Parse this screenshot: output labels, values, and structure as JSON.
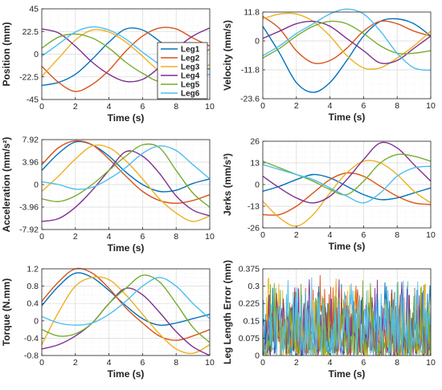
{
  "series_colors": [
    "#0072BD",
    "#D95319",
    "#EDB120",
    "#7E2F8E",
    "#77AC30",
    "#4DBEEE"
  ],
  "chart_data": [
    {
      "type": "line",
      "xlabel": "Time (s)",
      "ylabel": "Position (mm)",
      "xlim": [
        0,
        10
      ],
      "ylim": [
        -45,
        45
      ],
      "xticks": [
        "0",
        "2",
        "4",
        "6",
        "8",
        "10"
      ],
      "yticks": [
        "-45",
        "-22.5",
        "0",
        "22.5",
        "45"
      ],
      "grid": true,
      "legend": {
        "placement": "inside-right",
        "entries": [
          "Leg1",
          "Leg2",
          "Leg3",
          "Leg4",
          "Leg5",
          "Leg6"
        ]
      },
      "series": [
        {
          "name": "Leg1",
          "x": [
            0,
            1,
            2,
            3,
            4,
            5,
            6,
            7,
            8,
            9,
            10
          ],
          "values": [
            -31,
            -28,
            -20,
            -5,
            12,
            25,
            24,
            13,
            0,
            -10,
            -15
          ]
        },
        {
          "name": "Leg2",
          "x": [
            0,
            1,
            2,
            3,
            4,
            5,
            6,
            7,
            8,
            9,
            10
          ],
          "values": [
            -12,
            -28,
            -37,
            -30,
            -16,
            3,
            18,
            26,
            25,
            16,
            8
          ]
        },
        {
          "name": "Leg3",
          "x": [
            0,
            1,
            2,
            3,
            4,
            5,
            6,
            7,
            8,
            9,
            10
          ],
          "values": [
            -22,
            -4,
            14,
            24,
            22,
            12,
            -2,
            -17,
            -26,
            -22,
            -10
          ]
        },
        {
          "name": "Leg4",
          "x": [
            0,
            1,
            2,
            3,
            4,
            5,
            6,
            7,
            8,
            9,
            10
          ],
          "values": [
            25,
            21,
            8,
            -8,
            -20,
            -27,
            -25,
            -13,
            5,
            18,
            26
          ]
        },
        {
          "name": "Leg5",
          "x": [
            0,
            1,
            2,
            3,
            4,
            5,
            6,
            7,
            8,
            9,
            10
          ],
          "values": [
            6,
            17,
            20,
            16,
            6,
            -8,
            -19,
            -27,
            -23,
            -8,
            5
          ]
        },
        {
          "name": "Leg6",
          "x": [
            0,
            1,
            2,
            3,
            4,
            5,
            6,
            7,
            8,
            9,
            10
          ],
          "values": [
            -2,
            10,
            22,
            27,
            24,
            15,
            2,
            -10,
            -19,
            -22,
            -20
          ]
        }
      ]
    },
    {
      "type": "line",
      "xlabel": "Time (s)",
      "ylabel": "Velocity (mm/s)",
      "xlim": [
        0,
        10
      ],
      "ylim": [
        -23.6,
        11.8
      ],
      "xticks": [
        "0",
        "2",
        "4",
        "6",
        "8",
        "10"
      ],
      "yticks": [
        "-23.6",
        "-11.8",
        "0",
        "11.8"
      ],
      "grid": true,
      "series": [
        {
          "name": "Leg1",
          "x": [
            0,
            1,
            2,
            3,
            4,
            5,
            6,
            7,
            8,
            9,
            10
          ],
          "values": [
            6,
            -5,
            -17,
            -21,
            -17,
            -8,
            2,
            8,
            9,
            7,
            2
          ]
        },
        {
          "name": "Leg2",
          "x": [
            0,
            1,
            2,
            3,
            4,
            5,
            6,
            7,
            8,
            9,
            10
          ],
          "values": [
            10,
            5,
            -4,
            -9,
            -8,
            -3,
            4,
            8,
            7,
            4,
            2
          ]
        },
        {
          "name": "Leg3",
          "x": [
            0,
            1,
            2,
            3,
            4,
            5,
            6,
            7,
            8,
            9,
            10
          ],
          "values": [
            9,
            11,
            11,
            8,
            2,
            -6,
            -11,
            -11,
            -7,
            -2,
            4
          ]
        },
        {
          "name": "Leg4",
          "x": [
            0,
            1,
            2,
            3,
            4,
            5,
            6,
            7,
            8,
            9,
            10
          ],
          "values": [
            1,
            4,
            7,
            8,
            6,
            1,
            -4,
            -9,
            -8,
            -3,
            2
          ]
        },
        {
          "name": "Leg5",
          "x": [
            0,
            1,
            2,
            3,
            4,
            5,
            6,
            7,
            8,
            9,
            10
          ],
          "values": [
            -7,
            -3,
            2,
            6,
            8,
            7,
            3,
            -2,
            -5,
            -5,
            -4
          ]
        },
        {
          "name": "Leg6",
          "x": [
            0,
            1,
            2,
            3,
            4,
            5,
            6,
            7,
            8,
            9,
            10
          ],
          "values": [
            -6,
            -2,
            3,
            7,
            11,
            13,
            11,
            4,
            -5,
            -11,
            -12
          ]
        }
      ]
    },
    {
      "type": "line",
      "xlabel": "Time (s)",
      "ylabel": "Acceleration (mm/s²)",
      "xlim": [
        0,
        10
      ],
      "ylim": [
        -7.92,
        7.92
      ],
      "xticks": [
        "0",
        "2",
        "4",
        "6",
        "8",
        "10"
      ],
      "yticks": [
        "-7.92",
        "-3.96",
        "0",
        "3.96",
        "7.92"
      ],
      "grid": true,
      "series": [
        {
          "name": "Leg1",
          "x": [
            0,
            1,
            2,
            3,
            4,
            5,
            6,
            7,
            8,
            9,
            10
          ],
          "values": [
            2.5,
            5.5,
            7.5,
            7,
            5,
            2.2,
            0,
            -1.2,
            -1,
            0.2,
            1
          ]
        },
        {
          "name": "Leg2",
          "x": [
            0,
            1,
            2,
            3,
            4,
            5,
            6,
            7,
            8,
            9,
            10
          ],
          "values": [
            3.5,
            6.5,
            7.7,
            7,
            4.5,
            1.5,
            -1.2,
            -2.8,
            -3.3,
            -2.8,
            -1.8
          ]
        },
        {
          "name": "Leg3",
          "x": [
            0,
            1,
            2,
            3,
            4,
            5,
            6,
            7,
            8,
            9,
            10
          ],
          "values": [
            -1.2,
            1.5,
            4.5,
            6.8,
            6.5,
            4.2,
            1,
            -2.5,
            -5,
            -6.5,
            -5.5
          ]
        },
        {
          "name": "Leg4",
          "x": [
            0,
            1,
            2,
            3,
            4,
            5,
            6,
            7,
            8,
            9,
            10
          ],
          "values": [
            -6.5,
            -6,
            -4,
            -1,
            2.5,
            5.8,
            5,
            2,
            -2,
            -4.5,
            -5.5
          ]
        },
        {
          "name": "Leg5",
          "x": [
            0,
            1,
            2,
            3,
            4,
            5,
            6,
            7,
            8,
            9,
            10
          ],
          "values": [
            -2.5,
            -3,
            -2,
            0,
            2.5,
            5,
            7,
            6.5,
            2.5,
            -1.5,
            -4
          ]
        },
        {
          "name": "Leg6",
          "x": [
            0,
            1,
            2,
            3,
            4,
            5,
            6,
            7,
            8,
            9,
            10
          ],
          "values": [
            0.5,
            0,
            -0.8,
            -0.5,
            1,
            3,
            5.5,
            6.8,
            6,
            3.5,
            1
          ]
        }
      ]
    },
    {
      "type": "line",
      "xlabel": "Time (s)",
      "ylabel": "Jerks (mm/s³)",
      "xlim": [
        0,
        10
      ],
      "ylim": [
        -26,
        26
      ],
      "xticks": [
        "0",
        "2",
        "4",
        "6",
        "8",
        "10"
      ],
      "yticks": [
        "-26",
        "-13",
        "0",
        "13",
        "26"
      ],
      "grid": true,
      "series": [
        {
          "name": "Leg1",
          "x": [
            0,
            1,
            2,
            3,
            4,
            5,
            6,
            7,
            8,
            9,
            10
          ],
          "values": [
            -4,
            -1,
            3,
            6,
            4,
            -1,
            -6,
            -9,
            -8,
            -5,
            -2
          ]
        },
        {
          "name": "Leg2",
          "x": [
            0,
            1,
            2,
            3,
            4,
            5,
            6,
            7,
            8,
            9,
            10
          ],
          "values": [
            -18,
            -18,
            -13,
            -5,
            3,
            7,
            5,
            -1,
            -7,
            -11,
            -12
          ]
        },
        {
          "name": "Leg3",
          "x": [
            0,
            1,
            2,
            3,
            4,
            5,
            6,
            7,
            8,
            9,
            10
          ],
          "values": [
            -10,
            -20,
            -25,
            -18,
            -5,
            7,
            14,
            13,
            6,
            -4,
            -11
          ]
        },
        {
          "name": "Leg4",
          "x": [
            0,
            1,
            2,
            3,
            4,
            5,
            6,
            7,
            8,
            9,
            10
          ],
          "values": [
            5,
            -2,
            -8,
            -11,
            -7,
            3,
            15,
            25,
            22,
            12,
            2
          ]
        },
        {
          "name": "Leg5",
          "x": [
            0,
            1,
            2,
            3,
            4,
            5,
            6,
            7,
            8,
            9,
            10
          ],
          "values": [
            14,
            10,
            6,
            2,
            -3,
            -6,
            2,
            13,
            18,
            17,
            14
          ]
        },
        {
          "name": "Leg6",
          "x": [
            0,
            1,
            2,
            3,
            4,
            5,
            6,
            7,
            8,
            9,
            10
          ],
          "values": [
            12,
            9,
            6,
            3,
            -2,
            -7,
            -11,
            -5,
            5,
            10,
            11
          ]
        }
      ]
    },
    {
      "type": "line",
      "xlabel": "Time (s)",
      "ylabel": "Torque (N.mm)",
      "xlim": [
        0,
        10
      ],
      "ylim": [
        -0.8,
        1.2
      ],
      "xticks": [
        "0",
        "2",
        "4",
        "6",
        "8",
        "10"
      ],
      "yticks": [
        "-0.8",
        "-0.4",
        "0",
        "0.4",
        "0.8",
        "1.2"
      ],
      "grid": true,
      "series": [
        {
          "name": "Leg1",
          "x": [
            0,
            1,
            2,
            3,
            4,
            5,
            6,
            7,
            8,
            9,
            10
          ],
          "values": [
            0.35,
            0.8,
            1.1,
            1.0,
            0.7,
            0.35,
            0.05,
            -0.1,
            -0.05,
            0.05,
            0.15
          ]
        },
        {
          "name": "Leg2",
          "x": [
            0,
            1,
            2,
            3,
            4,
            5,
            6,
            7,
            8,
            9,
            10
          ],
          "values": [
            0.45,
            0.9,
            1.2,
            1.1,
            0.75,
            0.3,
            -0.05,
            -0.35,
            -0.45,
            -0.35,
            -0.2
          ]
        },
        {
          "name": "Leg3",
          "x": [
            0,
            1,
            2,
            3,
            4,
            5,
            6,
            7,
            8,
            9,
            10
          ],
          "values": [
            -0.55,
            0.2,
            0.8,
            1.0,
            0.95,
            0.6,
            0.15,
            -0.3,
            -0.65,
            -0.75,
            -0.55
          ]
        },
        {
          "name": "Leg4",
          "x": [
            0,
            1,
            2,
            3,
            4,
            5,
            6,
            7,
            8,
            9,
            10
          ],
          "values": [
            -0.65,
            -0.55,
            -0.35,
            -0.05,
            0.4,
            0.75,
            0.6,
            0.2,
            -0.25,
            -0.6,
            -0.8
          ]
        },
        {
          "name": "Leg5",
          "x": [
            0,
            1,
            2,
            3,
            4,
            5,
            6,
            7,
            8,
            9,
            10
          ],
          "values": [
            -0.2,
            -0.35,
            -0.3,
            -0.05,
            0.4,
            0.75,
            1.05,
            0.9,
            0.4,
            -0.15,
            -0.5
          ]
        },
        {
          "name": "Leg6",
          "x": [
            0,
            1,
            2,
            3,
            4,
            5,
            6,
            7,
            8,
            9,
            10
          ],
          "values": [
            0.1,
            -0.05,
            -0.1,
            -0.05,
            0.15,
            0.45,
            0.8,
            1.0,
            0.8,
            0.4,
            0.05
          ]
        }
      ]
    },
    {
      "type": "line",
      "xlabel": "Time (s)",
      "ylabel": "Leg Length Error (mm)",
      "xlim": [
        0,
        10
      ],
      "ylim": [
        0,
        0.375
      ],
      "xticks": [
        "0",
        "2",
        "4",
        "6",
        "8",
        "10"
      ],
      "yticks": [
        "0",
        "0.075",
        "0.15",
        "0.225",
        "0.3",
        "0.375"
      ],
      "grid": true,
      "noise": true,
      "noise_points": 220,
      "noise_max": 0.36
    }
  ]
}
